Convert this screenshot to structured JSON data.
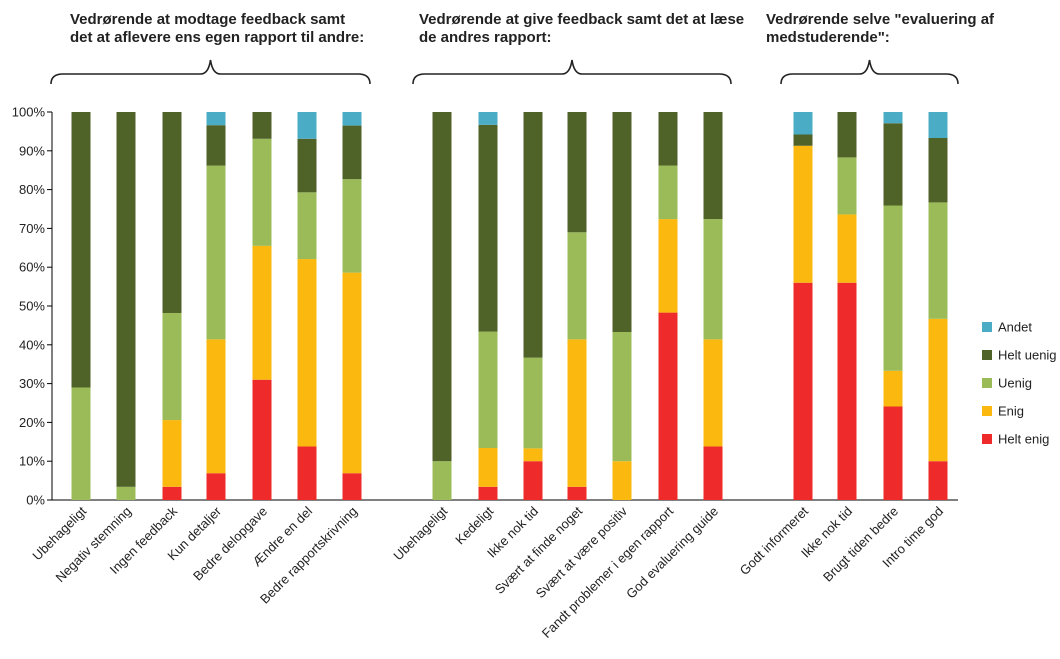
{
  "chart_data": {
    "type": "bar",
    "stacked": true,
    "percent": true,
    "ylim": [
      0,
      100
    ],
    "yticks": [
      "0%",
      "10%",
      "20%",
      "30%",
      "40%",
      "50%",
      "60%",
      "70%",
      "80%",
      "90%",
      "100%"
    ],
    "grid": false,
    "legend_position": "right",
    "series_colors": {
      "Helt enig": "#ee2a2a",
      "Enig": "#fbb90f",
      "Uenig": "#9bbb59",
      "Helt uenig": "#4f6228",
      "Andet": "#4bacc6"
    },
    "legend": [
      "Andet",
      "Helt uenig",
      "Uenig",
      "Enig",
      "Helt enig"
    ],
    "groups": [
      {
        "title_lines": [
          "Vedrørende at modtage feedback samt",
          "det at aflevere ens egen rapport til andre:"
        ],
        "categories": [
          "Ubehageligt",
          "Negativ stemning",
          "Ingen feedback",
          "Kun detaljer",
          "Bedre delopgave",
          "Ændre en del",
          "Bedre rapportskrivning"
        ],
        "series": [
          {
            "name": "Helt enig",
            "values": [
              0,
              0,
              3.4,
              6.9,
              31,
              13.8,
              6.9
            ]
          },
          {
            "name": "Enig",
            "values": [
              0,
              0,
              17.2,
              34.5,
              34.5,
              48.3,
              51.7
            ]
          },
          {
            "name": "Uenig",
            "values": [
              29,
              3.4,
              27.6,
              44.8,
              27.6,
              17.2,
              24.1
            ]
          },
          {
            "name": "Helt uenig",
            "values": [
              71,
              96.6,
              51.8,
              10.4,
              6.9,
              13.8,
              13.8
            ]
          },
          {
            "name": "Andet",
            "values": [
              0,
              0,
              0,
              3.4,
              0,
              6.9,
              3.5
            ]
          }
        ]
      },
      {
        "title_lines": [
          "Vedrørende at give feedback samt det at læse",
          "de andres rapport:"
        ],
        "categories": [
          "Ubehageligt",
          "Kedeligt",
          "Ikke nok tid",
          "Svært at finde noget",
          "Svært at være positiv",
          "Fandt problemer i egen rapport",
          "God evaluering guide"
        ],
        "series": [
          {
            "name": "Helt enig",
            "values": [
              0,
              3.4,
              10,
              3.4,
              0,
              48.3,
              13.8
            ]
          },
          {
            "name": "Enig",
            "values": [
              0,
              10,
              3.3,
              38,
              10,
              24.1,
              27.6
            ]
          },
          {
            "name": "Uenig",
            "values": [
              10,
              30,
              23.4,
              27.6,
              33.3,
              13.8,
              31
            ]
          },
          {
            "name": "Helt uenig",
            "values": [
              90,
              53.3,
              63.3,
              31,
              56.7,
              13.8,
              27.6
            ]
          },
          {
            "name": "Andet",
            "values": [
              0,
              3.3,
              0,
              0,
              0,
              0,
              0
            ]
          }
        ]
      },
      {
        "title_lines": [
          "Vedrørende selve \"evaluering af",
          "medstuderende\":"
        ],
        "categories": [
          "Godt informeret",
          "Ikke nok tid",
          "Brugt tiden bedre",
          "Intro time god"
        ],
        "series": [
          {
            "name": "Helt enig",
            "values": [
              56,
              56,
              24.1,
              10
            ]
          },
          {
            "name": "Enig",
            "values": [
              35.3,
              17.6,
              9.2,
              36.7
            ]
          },
          {
            "name": "Uenig",
            "values": [
              0,
              14.7,
              42.6,
              30
            ]
          },
          {
            "name": "Helt uenig",
            "values": [
              2.9,
              11.7,
              21.2,
              16.6
            ]
          },
          {
            "name": "Andet",
            "values": [
              5.8,
              0,
              2.9,
              6.7
            ]
          }
        ]
      }
    ]
  }
}
